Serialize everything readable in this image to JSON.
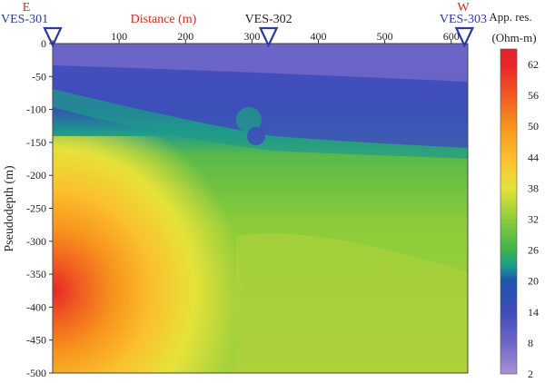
{
  "chart_data": {
    "type": "heatmap",
    "title": "",
    "xlabel": "Distance (m)",
    "ylabel": "Pseudodepth (m)",
    "xlim": [
      0,
      625
    ],
    "ylim": [
      -500,
      0
    ],
    "x_ticks": [
      0,
      100,
      200,
      300,
      400,
      500,
      600
    ],
    "y_ticks": [
      0,
      -50,
      -100,
      -150,
      -200,
      -250,
      -300,
      -350,
      -400,
      -450,
      -500
    ],
    "colorbar": {
      "title_line1": "App. res.",
      "title_line2": "(Ohm-m)",
      "ticks": [
        62,
        56,
        50,
        44,
        38,
        32,
        26,
        20,
        14,
        8,
        2
      ],
      "range": [
        2,
        65
      ],
      "stops": [
        {
          "value": 2,
          "color": "#a98fd1"
        },
        {
          "value": 8,
          "color": "#6f67c8"
        },
        {
          "value": 14,
          "color": "#3e4cb8"
        },
        {
          "value": 20,
          "color": "#1f54ad"
        },
        {
          "value": 23,
          "color": "#1a9e8c"
        },
        {
          "value": 26,
          "color": "#3fb24a"
        },
        {
          "value": 32,
          "color": "#8ccc3a"
        },
        {
          "value": 38,
          "color": "#e6e23a"
        },
        {
          "value": 44,
          "color": "#fbbf2d"
        },
        {
          "value": 50,
          "color": "#f7931d"
        },
        {
          "value": 56,
          "color": "#f05a22"
        },
        {
          "value": 62,
          "color": "#e8242a"
        },
        {
          "value": 65,
          "color": "#e0242a"
        }
      ]
    },
    "stations": [
      {
        "name": "VES-301",
        "x": 0,
        "direction": "E"
      },
      {
        "name": "VES-302",
        "x": 325,
        "direction": ""
      },
      {
        "name": "VES-303",
        "x": 620,
        "direction": "W"
      }
    ],
    "colors": {
      "station_blue": "#2b3a9b",
      "label_red": "#d9261c",
      "marker_stroke": "#2b3a9b"
    }
  }
}
